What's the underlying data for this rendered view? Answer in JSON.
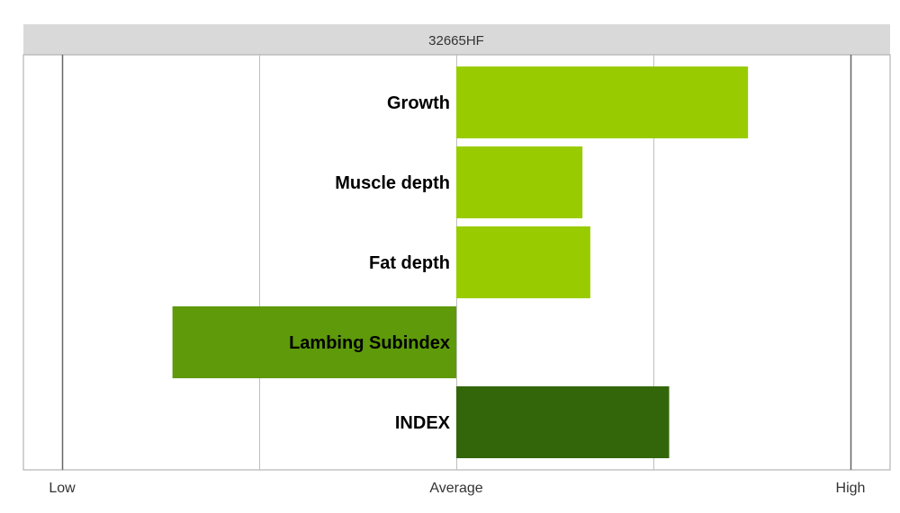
{
  "chart_data": {
    "type": "bar",
    "orientation": "horizontal",
    "title": "32665HF",
    "categories": [
      "Growth",
      "Muscle depth",
      "Fat depth",
      "Lambing Subindex",
      "INDEX"
    ],
    "values": [
      0.74,
      0.32,
      0.34,
      -0.72,
      0.54
    ],
    "colors": [
      "#99cc00",
      "#99cc00",
      "#99cc00",
      "#5e9a0a",
      "#33660a"
    ],
    "xlim": [
      -1,
      1
    ],
    "x_ticks": [
      -1,
      -0.5,
      0,
      0.5,
      1
    ],
    "x_tick_labels": [
      {
        "value": -1,
        "label": "Low"
      },
      {
        "value": 0,
        "label": "Average"
      },
      {
        "value": 1,
        "label": "High"
      }
    ],
    "grid": true,
    "xlabel": "",
    "ylabel": ""
  }
}
